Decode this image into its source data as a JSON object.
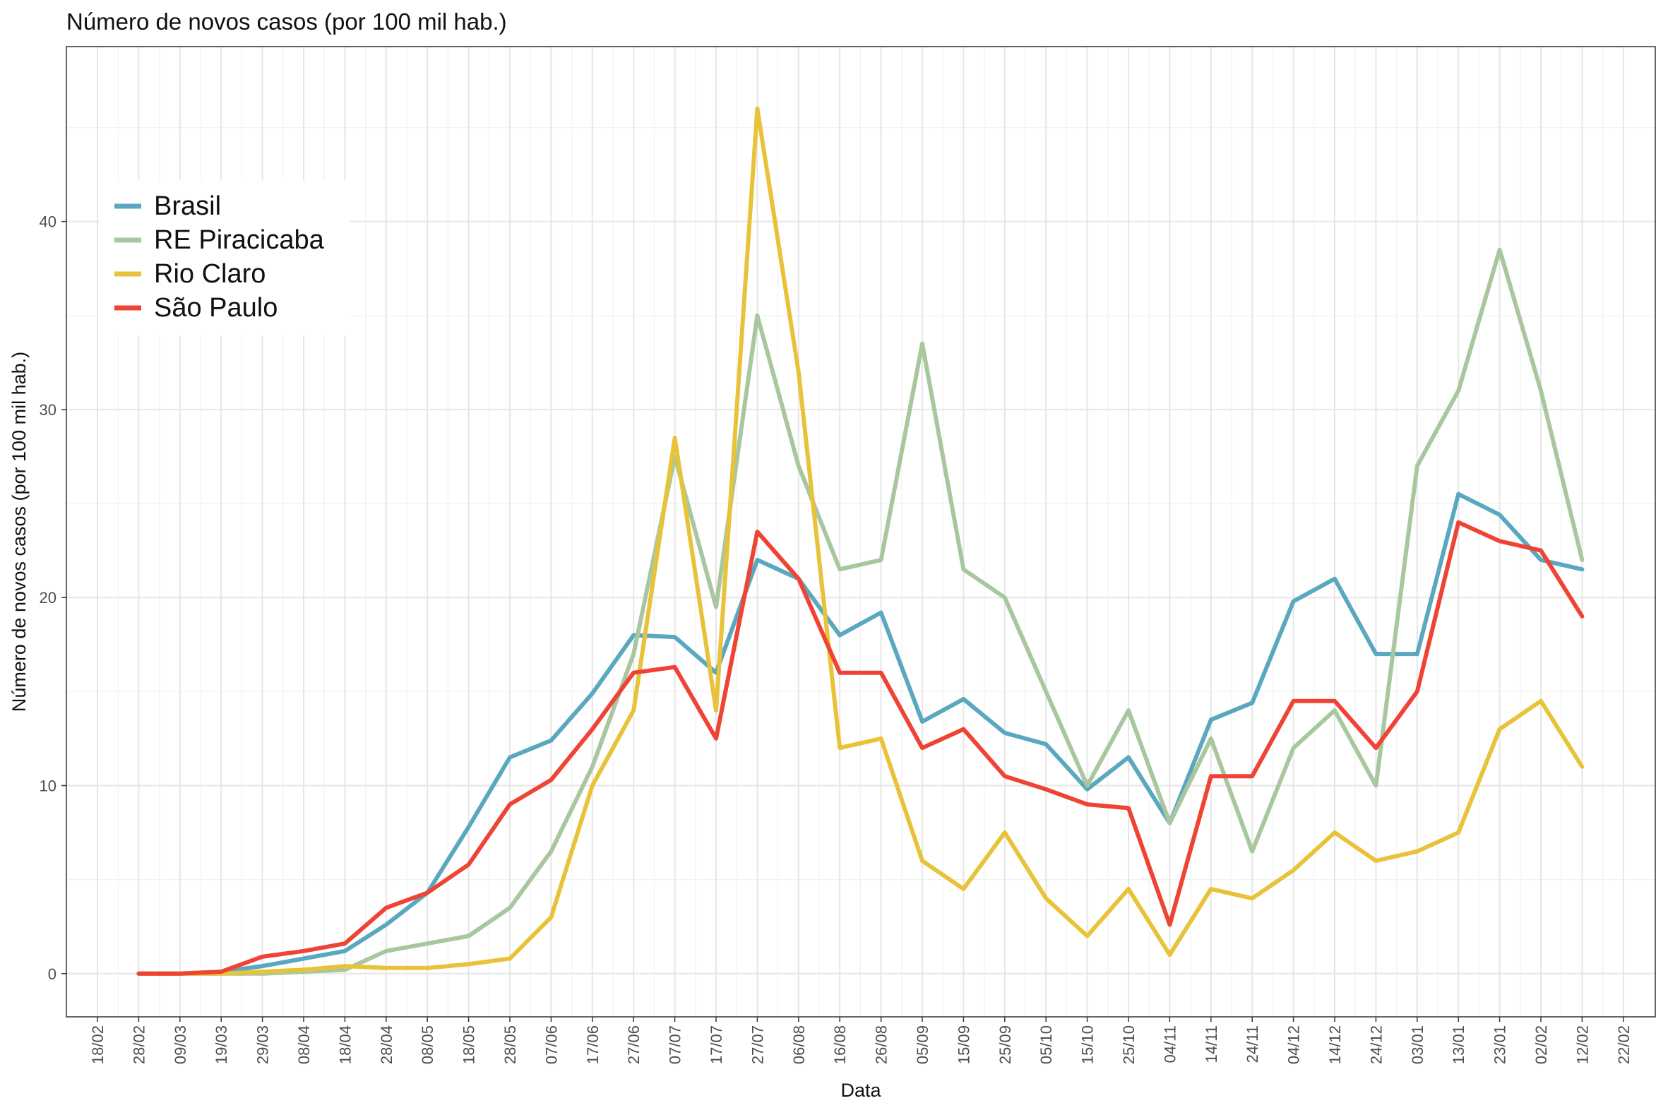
{
  "chart_data": {
    "type": "line",
    "title": "Número de novos casos (por 100 mil hab.)",
    "xlabel": "Data",
    "ylabel": "Número de novos casos (por 100 mil hab.)",
    "ylim": [
      -2.3,
      49.3
    ],
    "y_ticks": [
      0,
      10,
      20,
      30,
      40
    ],
    "x_ticks": [
      "18/02",
      "28/02",
      "09/03",
      "19/03",
      "29/03",
      "08/04",
      "18/04",
      "28/04",
      "08/05",
      "18/05",
      "28/05",
      "07/06",
      "17/06",
      "27/06",
      "07/07",
      "17/07",
      "27/07",
      "06/08",
      "16/08",
      "26/08",
      "05/09",
      "15/09",
      "25/09",
      "05/10",
      "15/10",
      "25/10",
      "04/11",
      "14/11",
      "24/11",
      "04/12",
      "14/12",
      "24/12",
      "03/01",
      "13/01",
      "23/01",
      "02/02",
      "12/02",
      "22/02"
    ],
    "grid": true,
    "legend": "top-left",
    "series": [
      {
        "name": "Brasil",
        "color": "#5aa8bf",
        "x": [
          "28/02",
          "09/03",
          "19/03",
          "29/03",
          "08/04",
          "18/04",
          "28/04",
          "08/05",
          "18/05",
          "28/05",
          "07/06",
          "17/06",
          "27/06",
          "07/07",
          "17/07",
          "27/07",
          "06/08",
          "16/08",
          "26/08",
          "05/09",
          "15/09",
          "25/09",
          "05/10",
          "15/10",
          "25/10",
          "04/11",
          "14/11",
          "24/11",
          "04/12",
          "14/12",
          "24/12",
          "03/01",
          "13/01",
          "23/01",
          "02/02",
          "12/02"
        ],
        "y": [
          0,
          0,
          0.1,
          0.4,
          0.8,
          1.2,
          2.6,
          4.3,
          7.8,
          11.5,
          12.4,
          14.9,
          18.0,
          17.9,
          16.0,
          22.0,
          21.0,
          18.0,
          19.2,
          13.4,
          14.6,
          12.8,
          12.2,
          9.8,
          11.5,
          8.0,
          13.5,
          14.4,
          19.8,
          21.0,
          17.0,
          17.0,
          25.5,
          24.4,
          22.0,
          21.5
        ]
      },
      {
        "name": "RE Piracicaba",
        "color": "#a9c79f",
        "x": [
          "28/02",
          "09/03",
          "19/03",
          "29/03",
          "08/04",
          "18/04",
          "28/04",
          "08/05",
          "18/05",
          "28/05",
          "07/06",
          "17/06",
          "27/06",
          "07/07",
          "17/07",
          "27/07",
          "06/08",
          "16/08",
          "26/08",
          "05/09",
          "15/09",
          "25/09",
          "05/10",
          "15/10",
          "25/10",
          "04/11",
          "14/11",
          "24/11",
          "04/12",
          "14/12",
          "24/12",
          "03/01",
          "13/01",
          "23/01",
          "02/02",
          "12/02"
        ],
        "y": [
          0,
          0,
          0,
          0,
          0.1,
          0.2,
          1.2,
          1.6,
          2.0,
          3.5,
          6.5,
          11.0,
          17.0,
          27.5,
          19.5,
          35.0,
          27.0,
          21.5,
          22.0,
          33.5,
          21.5,
          20.0,
          15.0,
          10.0,
          14.0,
          8.0,
          12.5,
          6.5,
          12.0,
          14.0,
          10.0,
          27.0,
          31.0,
          38.5,
          31.0,
          22.0
        ]
      },
      {
        "name": "Rio Claro",
        "color": "#e8c339",
        "x": [
          "28/02",
          "09/03",
          "19/03",
          "29/03",
          "08/04",
          "18/04",
          "28/04",
          "08/05",
          "18/05",
          "28/05",
          "07/06",
          "17/06",
          "27/06",
          "07/07",
          "17/07",
          "27/07",
          "06/08",
          "16/08",
          "26/08",
          "05/09",
          "15/09",
          "25/09",
          "05/10",
          "15/10",
          "25/10",
          "04/11",
          "14/11",
          "24/11",
          "04/12",
          "14/12",
          "24/12",
          "03/01",
          "13/01",
          "23/01",
          "02/02",
          "12/02"
        ],
        "y": [
          0,
          0,
          0,
          0.1,
          0.2,
          0.4,
          0.3,
          0.3,
          0.5,
          0.8,
          3.0,
          10.0,
          14.0,
          28.5,
          14.0,
          46.0,
          32.0,
          12.0,
          12.5,
          6.0,
          4.5,
          7.5,
          4.0,
          2.0,
          4.5,
          1.0,
          4.5,
          4.0,
          5.5,
          7.5,
          6.0,
          6.5,
          7.5,
          13.0,
          14.5,
          11.0
        ]
      },
      {
        "name": "São Paulo",
        "color": "#ef4435",
        "x": [
          "28/02",
          "09/03",
          "19/03",
          "29/03",
          "08/04",
          "18/04",
          "28/04",
          "08/05",
          "18/05",
          "28/05",
          "07/06",
          "17/06",
          "27/06",
          "07/07",
          "17/07",
          "27/07",
          "06/08",
          "16/08",
          "26/08",
          "05/09",
          "15/09",
          "25/09",
          "05/10",
          "15/10",
          "25/10",
          "04/11",
          "14/11",
          "24/11",
          "04/12",
          "14/12",
          "24/12",
          "03/01",
          "13/01",
          "23/01",
          "02/02",
          "12/02"
        ],
        "y": [
          0,
          0,
          0.1,
          0.9,
          1.2,
          1.6,
          3.5,
          4.3,
          5.8,
          9.0,
          10.3,
          13.0,
          16.0,
          16.3,
          12.5,
          23.5,
          21.0,
          16.0,
          16.0,
          12.0,
          13.0,
          10.5,
          9.8,
          9.0,
          8.8,
          2.6,
          10.5,
          10.5,
          14.5,
          14.5,
          12.0,
          15.0,
          24.0,
          23.0,
          22.5,
          19.0
        ]
      }
    ]
  }
}
